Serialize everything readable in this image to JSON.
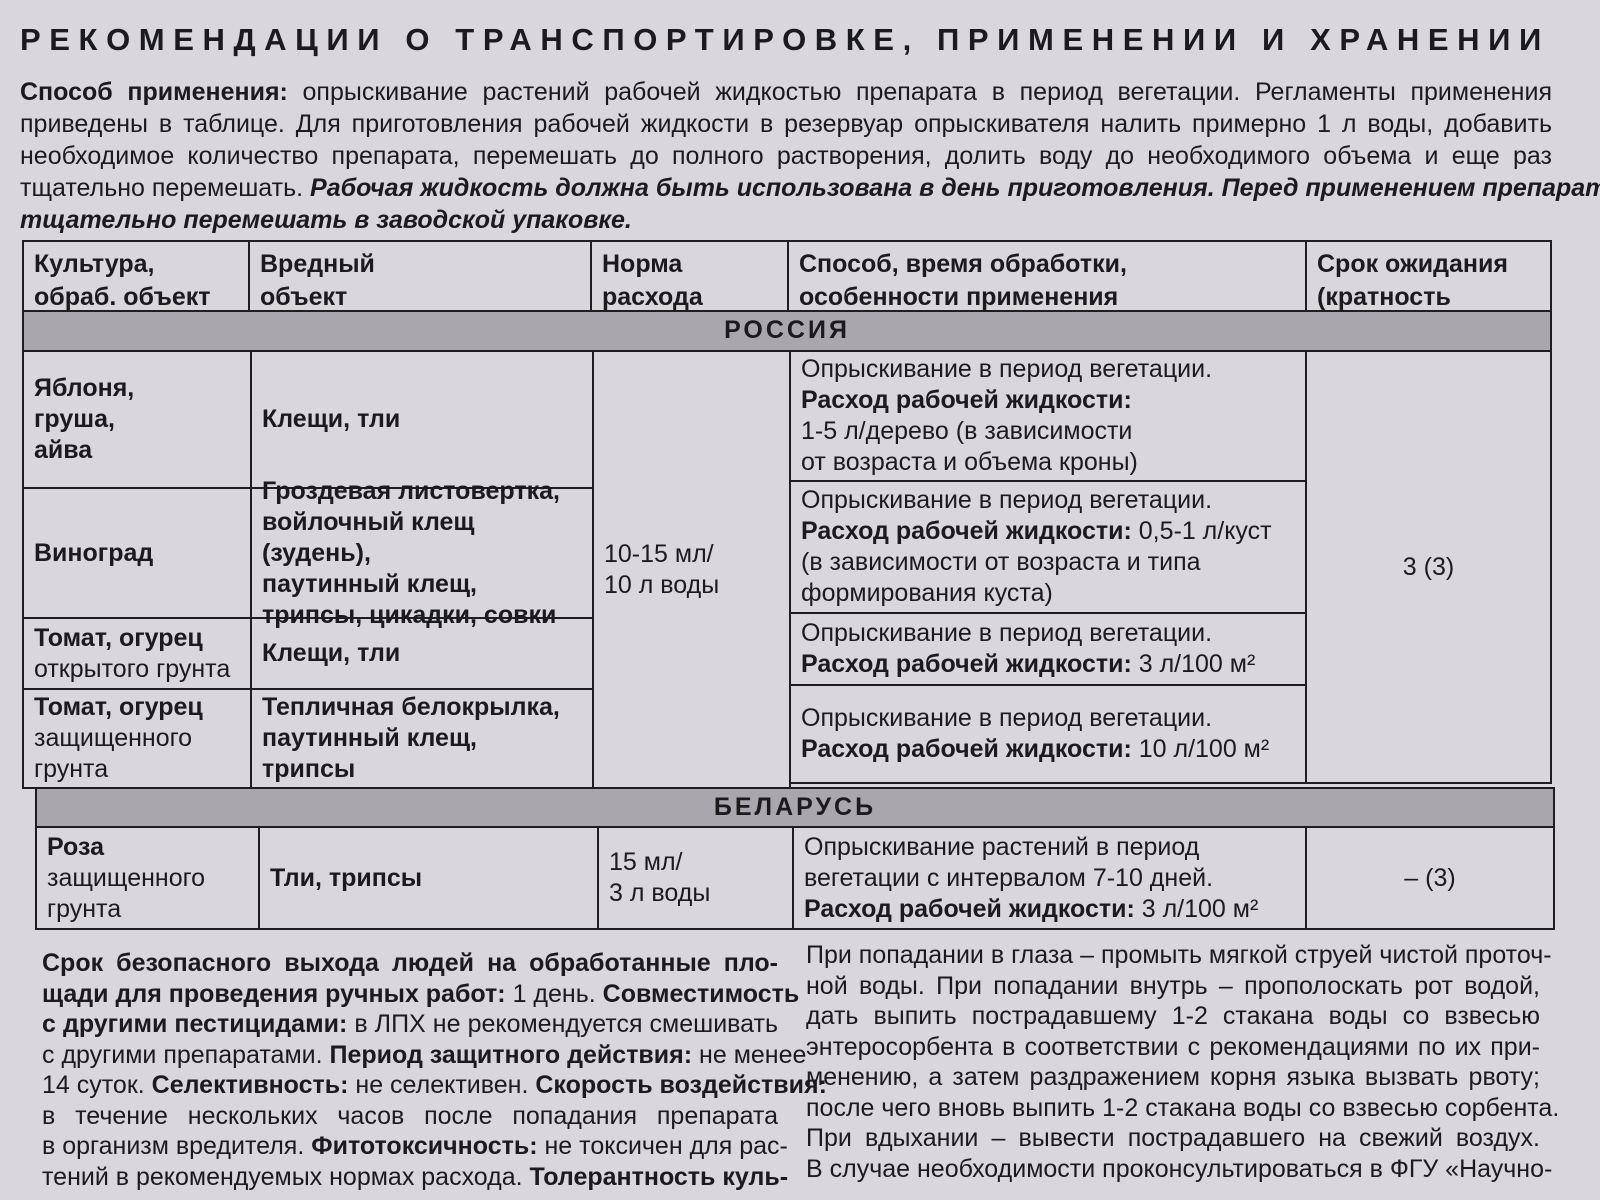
{
  "title": "РЕКОМЕНДАЦИИ О ТРАНСПОРТИРОВКЕ, ПРИМЕНЕНИИ И ХРАНЕНИИ",
  "intro": {
    "lines": [
      [
        {
          "t": "Способ применения:",
          "s": "b"
        },
        {
          "t": " опрыскивание растений рабочей жидкостью препарата в период вегетации. Регламенты применения"
        }
      ],
      [
        {
          "t": "приведены в таблице. Для приготовления рабочей жидкости в резервуар опрыскивателя налить примерно 1 л воды, добавить"
        }
      ],
      [
        {
          "t": "необходимое количество препарата, перемешать до полного растворения, долить воду до необходимого объема и еще раз"
        }
      ],
      [
        {
          "t": "тщательно перемешать. "
        },
        {
          "t": "Рабочая жидкость должна быть использована в день приготовления. Перед применением препарат",
          "s": "i"
        }
      ],
      [
        {
          "t": "тщательно перемешать в заводской упаковке.",
          "s": "i"
        }
      ]
    ]
  },
  "table": {
    "headers": [
      "Культура,\nобраб. объект",
      "Вредный\nобъект",
      "Норма расхода\nпрепарата",
      "Способ, время обработки,\nособенности применения",
      "Срок ожидания\n(кратность обраб.)"
    ],
    "region_russia": "РОССИЯ",
    "region_belarus": "БЕЛАРУСЬ",
    "russia": {
      "crops": [
        [
          {
            "t": "Яблоня,\nгруша,\nайва",
            "s": "b"
          }
        ],
        [
          {
            "t": "Виноград",
            "s": "b"
          }
        ],
        [
          {
            "t": "Томат, огурец",
            "s": "b"
          },
          {
            "t": "\nоткрытого грунта"
          }
        ],
        [
          {
            "t": "Томат, огурец",
            "s": "b"
          },
          {
            "t": "\nзащищенного\nгрунта"
          }
        ]
      ],
      "pests": [
        "Клещи, тли",
        "Гроздевая листовертка,\nвойлочный клещ (зудень),\nпаутинный клещ,\nтрипсы, цикадки, совки",
        "Клещи, тли",
        "Тепличная белокрылка,\nпаутинный клещ,\nтрипсы"
      ],
      "rate": "10-15 мл/\n10 л воды",
      "methods": [
        [
          {
            "t": "Опрыскивание в период вегетации.\n"
          },
          {
            "t": "Расход рабочей жидкости:",
            "s": "b"
          },
          {
            "t": "\n1-5 л/дерево (в зависимости\nот возраста и объема кроны)"
          }
        ],
        [
          {
            "t": "Опрыскивание в период вегетации.\n"
          },
          {
            "t": "Расход рабочей жидкости:",
            "s": "b"
          },
          {
            "t": " 0,5-1 л/куст\n(в зависимости от возраста и типа\nформирования куста)"
          }
        ],
        [
          {
            "t": "Опрыскивание в период вегетации.\n"
          },
          {
            "t": "Расход рабочей жидкости:",
            "s": "b"
          },
          {
            "t": " 3 л/100 м²"
          }
        ],
        [
          {
            "t": "Опрыскивание в период вегетации.\n"
          },
          {
            "t": "Расход рабочей жидкости:",
            "s": "b"
          },
          {
            "t": " 10 л/100 м²"
          }
        ]
      ],
      "waiting": "3 (3)"
    },
    "belarus": {
      "crop": [
        {
          "t": "Роза",
          "s": "b"
        },
        {
          "t": "\nзащищенного\nгрунта"
        }
      ],
      "pest": "Тли, трипсы",
      "rate": "15 мл/\n3 л воды",
      "method": [
        {
          "t": "Опрыскивание растений в период\nвегетации с интервалом 7-10 дней.\n"
        },
        {
          "t": "Расход рабочей жидкости:",
          "s": "b"
        },
        {
          "t": " 3 л/100 м²"
        }
      ],
      "waiting": "– (3)"
    }
  },
  "bottom_left": {
    "lines": [
      [
        {
          "t": "Срок безопасного выхода людей на обработанные пло-",
          "s": "b"
        }
      ],
      [
        {
          "t": "щади для проведения ручных работ:",
          "s": "b"
        },
        {
          "t": " 1 день. "
        },
        {
          "t": "Совместимость",
          "s": "b"
        }
      ],
      [
        {
          "t": "с другими пестицидами:",
          "s": "b"
        },
        {
          "t": " в ЛПХ не рекомендуется смешивать"
        }
      ],
      [
        {
          "t": "с другими препаратами. "
        },
        {
          "t": "Период защитного действия:",
          "s": "b"
        },
        {
          "t": " не менее"
        }
      ],
      [
        {
          "t": "14 суток. "
        },
        {
          "t": "Селективность:",
          "s": "b"
        },
        {
          "t": " не селективен. "
        },
        {
          "t": "Скорость воздействия:",
          "s": "b"
        }
      ],
      [
        {
          "t": "в течение нескольких часов после попадания препарата"
        }
      ],
      [
        {
          "t": "в организм вредителя. "
        },
        {
          "t": "Фитотоксичность:",
          "s": "b"
        },
        {
          "t": " не токсичен для рас-"
        }
      ],
      [
        {
          "t": "тений в рекомендуемых нормах расхода. "
        },
        {
          "t": "Толерантность куль-",
          "s": "b"
        }
      ]
    ]
  },
  "bottom_right": {
    "lines": [
      [
        {
          "t": "При попадании в глаза – промыть мягкой струей чистой проточ-"
        }
      ],
      [
        {
          "t": "ной воды. При попадании внутрь – прополоскать рот водой,"
        }
      ],
      [
        {
          "t": "дать выпить пострадавшему 1-2 стакана воды со взвесью"
        }
      ],
      [
        {
          "t": "энтеросорбента в соответствии с рекомендациями по их при-"
        }
      ],
      [
        {
          "t": "менению, а затем раздражением корня языка вызвать рвоту;"
        }
      ],
      [
        {
          "t": "после чего вновь выпить 1-2 стакана воды со взвесью сорбента."
        }
      ],
      [
        {
          "t": "При вдыхании – вывести пострадавшего на свежий воздух."
        }
      ],
      [
        {
          "t": "В случае необходимости проконсультироваться в ФГУ «Научно-"
        }
      ]
    ]
  }
}
